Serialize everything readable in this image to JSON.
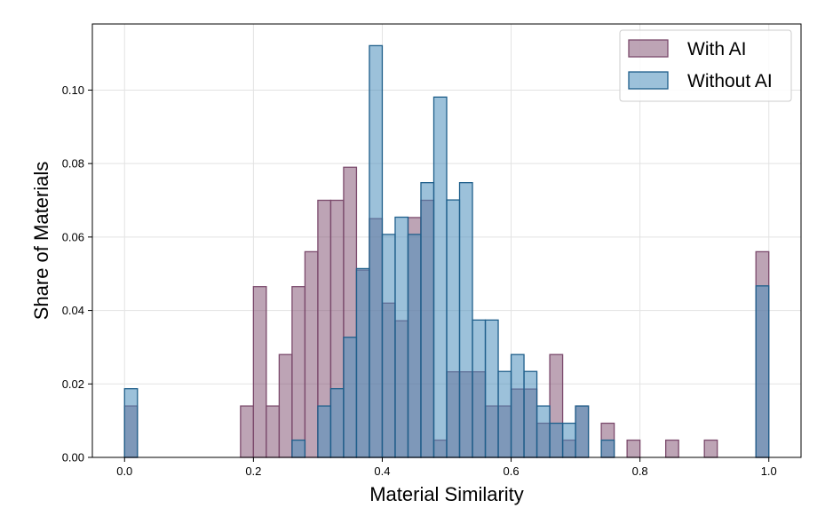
{
  "chart_data": {
    "type": "bar",
    "title": "",
    "xlabel": "Material Similarity",
    "ylabel": "Share of Materials",
    "xlim": [
      -0.05,
      1.05
    ],
    "ylim": [
      0,
      0.118
    ],
    "xticks": [
      0.0,
      0.2,
      0.4,
      0.6,
      0.8,
      1.0
    ],
    "xtick_labels": [
      "0.0",
      "0.2",
      "0.4",
      "0.6",
      "0.8",
      "1.0"
    ],
    "yticks": [
      0.0,
      0.02,
      0.04,
      0.06,
      0.08,
      0.1
    ],
    "ytick_labels": [
      "0.00",
      "0.02",
      "0.04",
      "0.06",
      "0.08",
      "0.10"
    ],
    "grid": true,
    "legend_position": "top-right",
    "bin_width": 0.02,
    "series": [
      {
        "name": "With AI",
        "color": "#7b4a6c",
        "fill": "rgba(123,74,108,0.5)",
        "bins": [
          {
            "x": 0.0,
            "value": 0.014
          },
          {
            "x": 0.18,
            "value": 0.014
          },
          {
            "x": 0.2,
            "value": 0.0465
          },
          {
            "x": 0.22,
            "value": 0.014
          },
          {
            "x": 0.24,
            "value": 0.028
          },
          {
            "x": 0.26,
            "value": 0.0465
          },
          {
            "x": 0.28,
            "value": 0.056
          },
          {
            "x": 0.3,
            "value": 0.07
          },
          {
            "x": 0.32,
            "value": 0.07
          },
          {
            "x": 0.34,
            "value": 0.079
          },
          {
            "x": 0.36,
            "value": 0.051
          },
          {
            "x": 0.38,
            "value": 0.065
          },
          {
            "x": 0.4,
            "value": 0.042
          },
          {
            "x": 0.42,
            "value": 0.0372
          },
          {
            "x": 0.44,
            "value": 0.0653
          },
          {
            "x": 0.46,
            "value": 0.07
          },
          {
            "x": 0.48,
            "value": 0.0047
          },
          {
            "x": 0.5,
            "value": 0.0233
          },
          {
            "x": 0.52,
            "value": 0.0233
          },
          {
            "x": 0.54,
            "value": 0.0233
          },
          {
            "x": 0.56,
            "value": 0.014
          },
          {
            "x": 0.58,
            "value": 0.014
          },
          {
            "x": 0.6,
            "value": 0.0186
          },
          {
            "x": 0.62,
            "value": 0.0186
          },
          {
            "x": 0.64,
            "value": 0.0093
          },
          {
            "x": 0.66,
            "value": 0.028
          },
          {
            "x": 0.68,
            "value": 0.0047
          },
          {
            "x": 0.7,
            "value": 0.014
          },
          {
            "x": 0.74,
            "value": 0.0093
          },
          {
            "x": 0.78,
            "value": 0.0047
          },
          {
            "x": 0.84,
            "value": 0.0047
          },
          {
            "x": 0.9,
            "value": 0.0047
          },
          {
            "x": 0.98,
            "value": 0.056
          }
        ]
      },
      {
        "name": "Without AI",
        "color": "#1f5f8b",
        "fill": "rgba(74,142,187,0.55)",
        "bins": [
          {
            "x": 0.0,
            "value": 0.0187
          },
          {
            "x": 0.26,
            "value": 0.0047
          },
          {
            "x": 0.3,
            "value": 0.014
          },
          {
            "x": 0.32,
            "value": 0.0187
          },
          {
            "x": 0.34,
            "value": 0.0327
          },
          {
            "x": 0.36,
            "value": 0.0514
          },
          {
            "x": 0.38,
            "value": 0.1121
          },
          {
            "x": 0.4,
            "value": 0.0607
          },
          {
            "x": 0.42,
            "value": 0.0654
          },
          {
            "x": 0.44,
            "value": 0.0607
          },
          {
            "x": 0.46,
            "value": 0.0748
          },
          {
            "x": 0.48,
            "value": 0.0981
          },
          {
            "x": 0.5,
            "value": 0.0701
          },
          {
            "x": 0.52,
            "value": 0.0748
          },
          {
            "x": 0.54,
            "value": 0.0374
          },
          {
            "x": 0.56,
            "value": 0.0374
          },
          {
            "x": 0.58,
            "value": 0.0234
          },
          {
            "x": 0.6,
            "value": 0.028
          },
          {
            "x": 0.62,
            "value": 0.0234
          },
          {
            "x": 0.64,
            "value": 0.014
          },
          {
            "x": 0.66,
            "value": 0.0093
          },
          {
            "x": 0.68,
            "value": 0.0093
          },
          {
            "x": 0.7,
            "value": 0.014
          },
          {
            "x": 0.74,
            "value": 0.0047
          },
          {
            "x": 0.98,
            "value": 0.0467
          }
        ]
      }
    ]
  }
}
